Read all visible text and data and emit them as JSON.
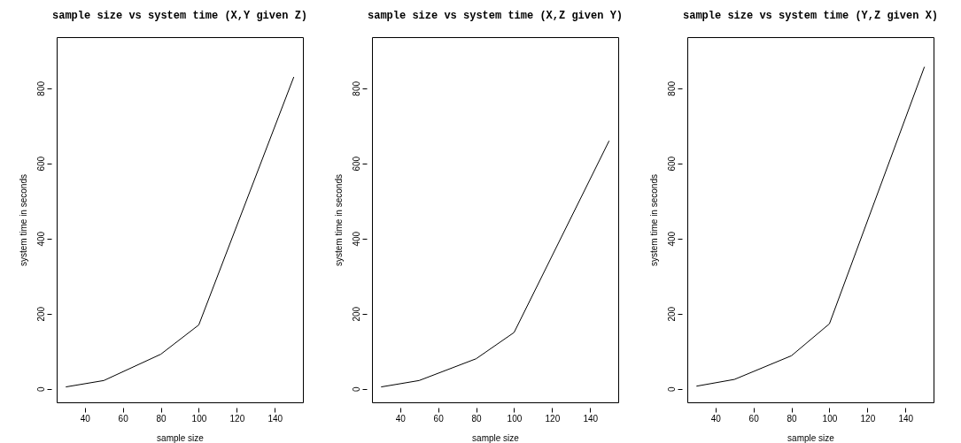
{
  "chart_data": [
    {
      "type": "line",
      "title": "sample size vs system time (X,Y given Z)",
      "xlabel": "sample size",
      "ylabel": "system time in seconds",
      "x": [
        30,
        50,
        80,
        100,
        150
      ],
      "values": [
        5,
        22,
        92,
        170,
        830
      ],
      "color": "#000000",
      "xlim": [
        25.2,
        154.8
      ],
      "ylim": [
        -36,
        936
      ],
      "xticks": [
        40,
        60,
        80,
        100,
        120,
        140
      ],
      "yticks": [
        0,
        200,
        400,
        600,
        800
      ],
      "grid": false
    },
    {
      "type": "line",
      "title": "sample size vs system time (X,Z given Y)",
      "xlabel": "sample size",
      "ylabel": "system time in seconds",
      "x": [
        30,
        50,
        80,
        100,
        150
      ],
      "values": [
        5,
        22,
        80,
        150,
        660
      ],
      "color": "#000000",
      "xlim": [
        25.2,
        154.8
      ],
      "ylim": [
        -36,
        936
      ],
      "xticks": [
        40,
        60,
        80,
        100,
        120,
        140
      ],
      "yticks": [
        0,
        200,
        400,
        600,
        800
      ],
      "grid": false
    },
    {
      "type": "line",
      "title": "sample size vs system time (Y,Z given X)",
      "xlabel": "sample size",
      "ylabel": "system time in seconds",
      "x": [
        30,
        50,
        80,
        100,
        150
      ],
      "values": [
        7,
        25,
        88,
        173,
        857
      ],
      "color": "#000000",
      "xlim": [
        25.2,
        154.8
      ],
      "ylim": [
        -36,
        936
      ],
      "xticks": [
        40,
        60,
        80,
        100,
        120,
        140
      ],
      "yticks": [
        0,
        200,
        400,
        600,
        800
      ],
      "grid": false
    }
  ]
}
